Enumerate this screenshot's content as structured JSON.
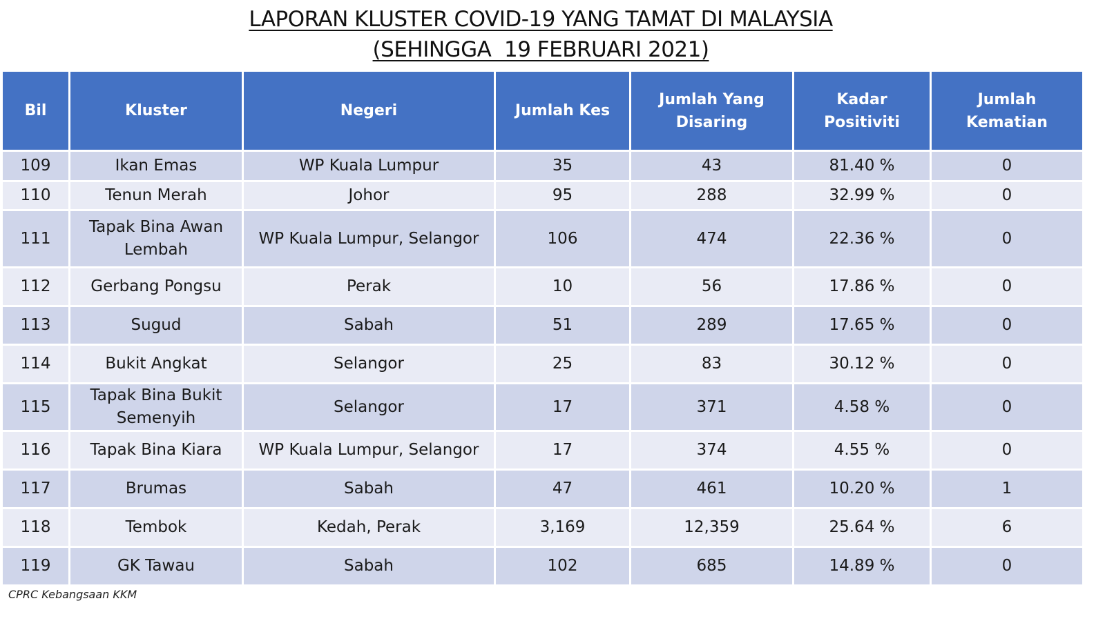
{
  "title": {
    "line1": "LAPORAN KLUSTER COVID-19 YANG TAMAT DI MALAYSIA",
    "line2": "(SEHINGGA  19 FEBRUARI 2021)"
  },
  "table": {
    "headers": {
      "bil": "Bil",
      "kluster": "Kluster",
      "negeri": "Negeri",
      "jumlah_kes": "Jumlah Kes",
      "jumlah_disaring_1": "Jumlah Yang",
      "jumlah_disaring_2": "Disaring",
      "kadar_positiviti": "Kadar Positiviti",
      "jumlah_kematian": "Jumlah Kematian"
    },
    "rows": [
      {
        "bil": "109",
        "kluster": "Ikan Emas",
        "negeri": "WP Kuala Lumpur",
        "kes": "35",
        "disaring": "43",
        "positiviti": "81.40 %",
        "kematian": "0"
      },
      {
        "bil": "110",
        "kluster": "Tenun Merah",
        "negeri": "Johor",
        "kes": "95",
        "disaring": "288",
        "positiviti": "32.99 %",
        "kematian": "0"
      },
      {
        "bil": "111",
        "kluster": "Tapak Bina Awan Lembah",
        "negeri": "WP Kuala Lumpur, Selangor",
        "kes": "106",
        "disaring": "474",
        "positiviti": "22.36 %",
        "kematian": "0"
      },
      {
        "bil": "112",
        "kluster": "Gerbang Pongsu",
        "negeri": "Perak",
        "kes": "10",
        "disaring": "56",
        "positiviti": "17.86 %",
        "kematian": "0"
      },
      {
        "bil": "113",
        "kluster": "Sugud",
        "negeri": "Sabah",
        "kes": "51",
        "disaring": "289",
        "positiviti": "17.65 %",
        "kematian": "0"
      },
      {
        "bil": "114",
        "kluster": "Bukit Angkat",
        "negeri": "Selangor",
        "kes": "25",
        "disaring": "83",
        "positiviti": "30.12 %",
        "kematian": "0"
      },
      {
        "bil": "115",
        "kluster": "Tapak Bina Bukit Semenyih",
        "negeri": "Selangor",
        "kes": "17",
        "disaring": "371",
        "positiviti": "4.58 %",
        "kematian": "0"
      },
      {
        "bil": "116",
        "kluster": "Tapak Bina Kiara",
        "negeri": "WP Kuala Lumpur, Selangor",
        "kes": "17",
        "disaring": "374",
        "positiviti": "4.55 %",
        "kematian": "0"
      },
      {
        "bil": "117",
        "kluster": "Brumas",
        "negeri": "Sabah",
        "kes": "47",
        "disaring": "461",
        "positiviti": "10.20 %",
        "kematian": "1"
      },
      {
        "bil": "118",
        "kluster": "Tembok",
        "negeri": "Kedah, Perak",
        "kes": "3,169",
        "disaring": "12,359",
        "positiviti": "25.64 %",
        "kematian": "6"
      },
      {
        "bil": "119",
        "kluster": "GK Tawau",
        "negeri": "Sabah",
        "kes": "102",
        "disaring": "685",
        "positiviti": "14.89 %",
        "kematian": "0"
      }
    ]
  },
  "footer": {
    "source": "CPRC Kebangsaan KKM"
  },
  "colors": {
    "header_bg": "#4472c4",
    "row_odd_bg": "#cfd5ea",
    "row_even_bg": "#e9ebf5"
  }
}
